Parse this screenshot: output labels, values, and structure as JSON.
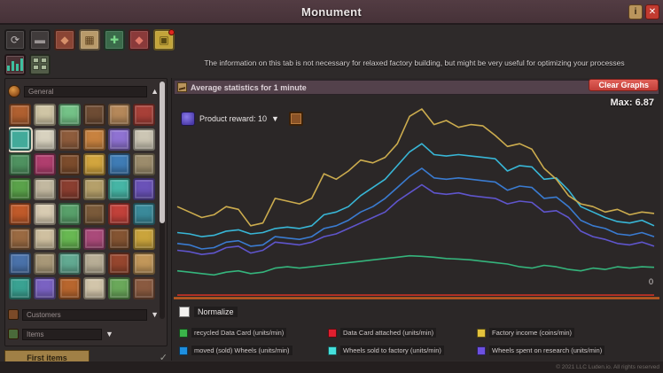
{
  "window": {
    "title": "Monument"
  },
  "titlebar": {
    "info_label": "i",
    "close_label": "✕"
  },
  "notice": "The information on this tab is not necessary for relaxed factory building, but might be very useful for optimizing your processes",
  "toolbar": {
    "buttons": [
      {
        "name": "blueprints-tool",
        "glyph": "⟳",
        "bg": "#3a3535",
        "fg": "#b8b2b2",
        "badge": false
      },
      {
        "name": "conveyor-tool",
        "glyph": "▬",
        "bg": "#403b3b",
        "fg": "#9a9494",
        "badge": false
      },
      {
        "name": "food-tool",
        "glyph": "◆",
        "bg": "#8a4434",
        "fg": "#d8906a",
        "badge": false
      },
      {
        "name": "storage-tool",
        "glyph": "▦",
        "bg": "#b89a6a",
        "fg": "#5f421f",
        "badge": false
      },
      {
        "name": "research-tool",
        "glyph": "✚",
        "bg": "#3a6a4a",
        "fg": "#7ad88a",
        "badge": false
      },
      {
        "name": "market-tool",
        "glyph": "◆",
        "bg": "#8a3a3a",
        "fg": "#e07a6a",
        "badge": false
      },
      {
        "name": "alerts-tool",
        "glyph": "▣",
        "bg": "#c2a43a",
        "fg": "#5a4a12",
        "badge": true
      }
    ]
  },
  "sidebar": {
    "header": {
      "label": "General"
    },
    "selected_index": 6,
    "items": [
      "#b06030",
      "#cfc5a5",
      "#74c287",
      "#6e4c34",
      "#b5885a",
      "#a84038",
      "#42aa9a",
      "#d8d2bf",
      "#8e5c3c",
      "#c8823f",
      "#8f72d2",
      "#ccc6b4",
      "#4f9260",
      "#b03e6e",
      "#7c4c2c",
      "#d2a53e",
      "#3f7cb5",
      "#9c8c6c",
      "#5aa24a",
      "#c2b8a0",
      "#8a3e30",
      "#b5a06a",
      "#46b5a5",
      "#6a52b8",
      "#c05a2a",
      "#d8cbb2",
      "#58a06a",
      "#7a5a3a",
      "#c2413a",
      "#3a8a9a",
      "#9a6a42",
      "#cfc0a0",
      "#68b852",
      "#aa4a7a",
      "#845432",
      "#caa43c",
      "#4a72aa",
      "#a89878",
      "#62aa92",
      "#b8ae96",
      "#96462e",
      "#c2975a",
      "#3aa292",
      "#7a62c2",
      "#b8662e",
      "#d2c5aa",
      "#6aa85a",
      "#8a5a40"
    ],
    "sections": [
      {
        "label": "Customers"
      },
      {
        "label": "Items"
      }
    ],
    "footer": {
      "label": "First items",
      "check": "✓"
    }
  },
  "chart": {
    "header": "Average statistics for 1 minute",
    "clear_button": "Clear Graphs",
    "max_label": "Max: 6.87",
    "zero_label": "0",
    "dropdown": {
      "value": "Product reward: 10",
      "chevron": "▼"
    },
    "normalize_label": "Normalize",
    "legend": [
      {
        "color": "#3bb54a",
        "label": "recycled Data Card (units/min)"
      },
      {
        "color": "#e11f2f",
        "label": "Data Card attached (units/min)"
      },
      {
        "color": "#e3c23c",
        "label": "Factory income (coins/min)"
      },
      {
        "color": "#1e8fe0",
        "label": "moved (sold) Wheels (units/min)"
      },
      {
        "color": "#45e0dc",
        "label": "Wheels sold to factory (units/min)"
      },
      {
        "color": "#6c50e0",
        "label": "Wheels spent on research (units/min)"
      }
    ]
  },
  "chart_data": {
    "type": "line",
    "title": "Average statistics for 1 minute",
    "xlabel": "",
    "ylabel": "",
    "ylim": [
      0,
      6.87
    ],
    "max_value": 6.87,
    "grid": false,
    "legend_position": "bottom",
    "baseline_color": "#c05a20",
    "series": [
      {
        "name": "Data Card attached (units/min)",
        "color": "#cc3226",
        "values": [
          0.06,
          0.06,
          0.06,
          0.06,
          0.06,
          0.06,
          0.06,
          0.06,
          0.06,
          0.06,
          0.06,
          0.06,
          0.06,
          0.06,
          0.06,
          0.06,
          0.06,
          0.06,
          0.06,
          0.06,
          0.06,
          0.06,
          0.06,
          0.06,
          0.06,
          0.06,
          0.06,
          0.06,
          0.06,
          0.06,
          0.06,
          0.06,
          0.06,
          0.06,
          0.06,
          0.06,
          0.06,
          0.06,
          0.06,
          0.06
        ]
      },
      {
        "name": "recycled Data Card (units/min)",
        "color": "#35b47c",
        "values": [
          0.95,
          0.9,
          0.85,
          0.8,
          0.9,
          0.95,
          0.85,
          0.9,
          1.05,
          1.1,
          1.05,
          1.1,
          1.15,
          1.2,
          1.25,
          1.3,
          1.35,
          1.4,
          1.45,
          1.5,
          1.48,
          1.45,
          1.4,
          1.38,
          1.35,
          1.3,
          1.25,
          1.2,
          1.1,
          1.05,
          1.15,
          1.1,
          1.0,
          0.95,
          1.05,
          1.0,
          1.1,
          1.05,
          1.1,
          1.08
        ]
      },
      {
        "name": "Wheels spent on research (units/min)",
        "color": "#5f55cc",
        "values": [
          1.7,
          1.65,
          1.55,
          1.6,
          1.8,
          1.85,
          1.6,
          1.7,
          2.0,
          1.95,
          1.9,
          2.0,
          2.2,
          2.3,
          2.5,
          2.7,
          2.9,
          3.1,
          3.5,
          3.8,
          4.1,
          3.8,
          3.75,
          3.8,
          3.7,
          3.65,
          3.6,
          3.4,
          3.5,
          3.45,
          3.1,
          3.15,
          2.9,
          2.4,
          2.2,
          2.1,
          1.95,
          1.9,
          2.0,
          1.85
        ]
      },
      {
        "name": "moved (sold) Wheels (units/min)",
        "color": "#3a7bd0",
        "values": [
          1.95,
          1.9,
          1.75,
          1.8,
          2.0,
          2.05,
          1.85,
          1.9,
          2.2,
          2.15,
          2.1,
          2.2,
          2.5,
          2.6,
          2.8,
          3.1,
          3.3,
          3.6,
          4.0,
          4.4,
          4.7,
          4.35,
          4.3,
          4.35,
          4.3,
          4.25,
          4.2,
          3.9,
          4.05,
          4.0,
          3.6,
          3.65,
          3.3,
          2.8,
          2.6,
          2.5,
          2.3,
          2.25,
          2.35,
          2.2
        ]
      },
      {
        "name": "Wheels sold to factory (units/min)",
        "color": "#38b6d6",
        "values": [
          2.35,
          2.3,
          2.2,
          2.25,
          2.4,
          2.45,
          2.3,
          2.35,
          2.5,
          2.55,
          2.5,
          2.6,
          3.0,
          3.1,
          3.3,
          3.7,
          4.0,
          4.3,
          4.8,
          5.3,
          5.6,
          5.2,
          5.15,
          5.2,
          5.15,
          5.1,
          5.05,
          4.6,
          4.8,
          4.75,
          4.3,
          4.35,
          3.9,
          3.3,
          3.1,
          2.9,
          2.75,
          2.7,
          2.8,
          2.6
        ]
      },
      {
        "name": "Factory income (coins/min)",
        "color": "#ccac4e",
        "values": [
          3.3,
          3.1,
          2.9,
          3.0,
          3.3,
          3.2,
          2.6,
          2.7,
          3.6,
          3.5,
          3.4,
          3.6,
          4.5,
          4.3,
          4.6,
          5.0,
          4.9,
          5.1,
          5.6,
          6.6,
          6.87,
          6.3,
          6.45,
          6.2,
          6.3,
          6.25,
          5.9,
          5.5,
          5.6,
          5.4,
          4.7,
          4.3,
          3.7,
          3.4,
          3.3,
          3.1,
          3.2,
          3.0,
          3.1,
          3.05
        ]
      }
    ]
  },
  "footer": {
    "watermark": "© 2021 LLC Luden.io. All rights reserved"
  }
}
